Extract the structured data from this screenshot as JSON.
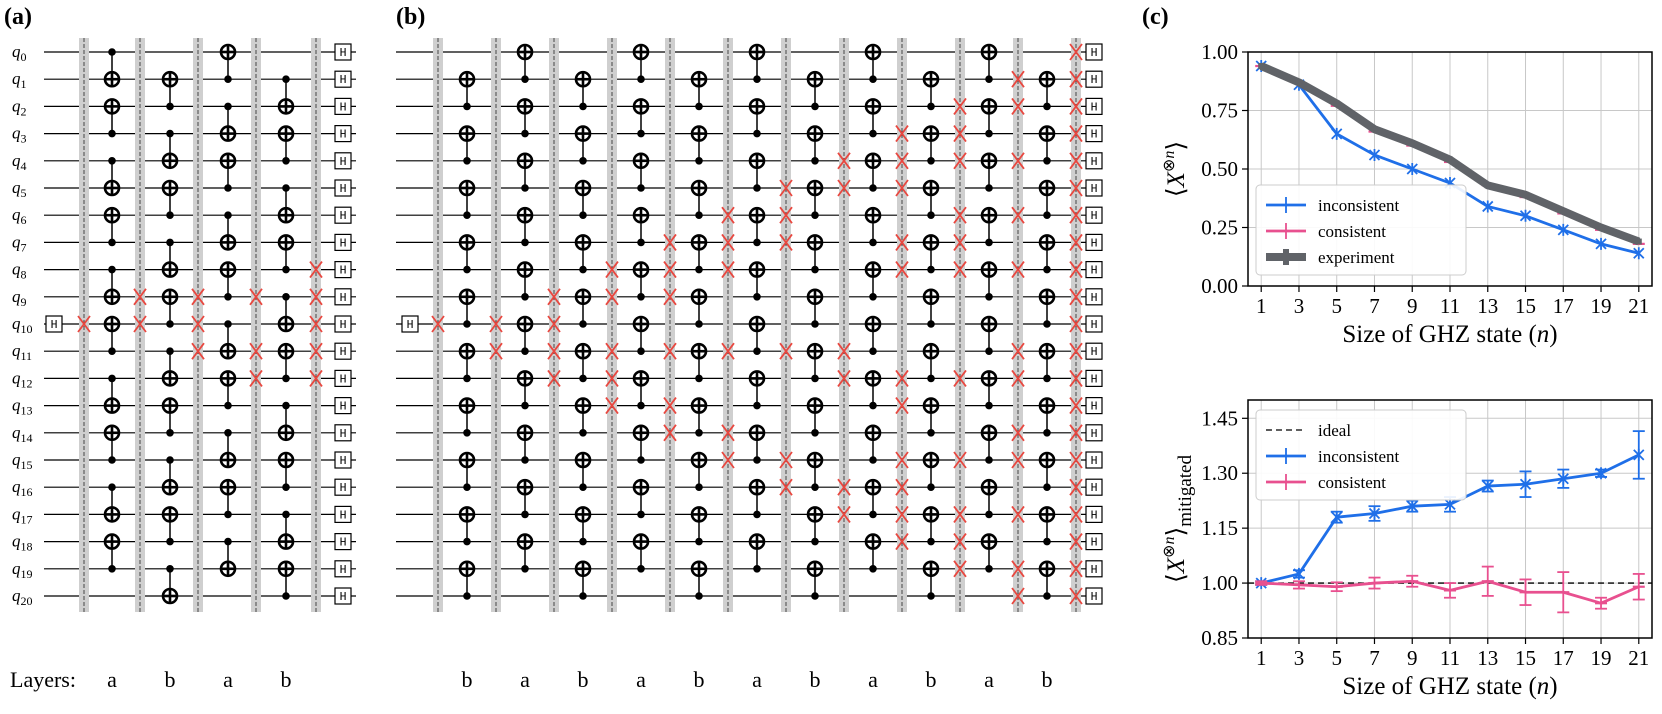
{
  "panels": {
    "a": "(a)",
    "b": "(b)",
    "c": "(c)"
  },
  "hadamard_label": "H",
  "layers_label": "Layers:",
  "circuit_a": {
    "qubits": [
      "q0",
      "q1",
      "q2",
      "q3",
      "q4",
      "q5",
      "q6",
      "q7",
      "q8",
      "q9",
      "q10",
      "q11",
      "q12",
      "q13",
      "q14",
      "q15",
      "q16",
      "q17",
      "q18",
      "q19",
      "q20"
    ],
    "layers": [
      "a",
      "b",
      "a",
      "b"
    ]
  },
  "circuit_b": {
    "layers": [
      "b",
      "a",
      "b",
      "a",
      "b",
      "a",
      "b",
      "a",
      "b",
      "a",
      "b"
    ]
  },
  "colors": {
    "inconsistent": "#1f6fe8",
    "consistent": "#e8508f",
    "experiment": "#606368",
    "swap": "#e8473f",
    "barrier": "#cfcfcf"
  },
  "chart_data": [
    {
      "type": "line",
      "xlabel": "Size of GHZ state (n)",
      "ylabel": "⟨X⊗n⟩",
      "x": [
        1,
        3,
        5,
        7,
        9,
        11,
        13,
        15,
        17,
        19,
        21
      ],
      "xlim": [
        0.3,
        21.7
      ],
      "ylim": [
        0.0,
        1.0
      ],
      "yticks": [
        "0.00",
        "0.25",
        "0.50",
        "0.75",
        "1.00"
      ],
      "grid": true,
      "legend_position": "lower-left",
      "series": [
        {
          "name": "inconsistent",
          "values": [
            0.94,
            0.86,
            0.65,
            0.56,
            0.5,
            0.44,
            0.34,
            0.3,
            0.24,
            0.18,
            0.14
          ]
        },
        {
          "name": "consistent",
          "values": [
            0.94,
            0.87,
            0.77,
            0.66,
            0.6,
            0.53,
            0.43,
            0.38,
            0.31,
            0.24,
            0.18
          ]
        },
        {
          "name": "experiment",
          "values": [
            0.94,
            0.87,
            0.78,
            0.67,
            0.61,
            0.54,
            0.43,
            0.39,
            0.32,
            0.25,
            0.19
          ]
        }
      ]
    },
    {
      "type": "line",
      "xlabel": "Size of GHZ state (n)",
      "ylabel": "⟨X⊗n⟩mitigated",
      "x": [
        1,
        3,
        5,
        7,
        9,
        11,
        13,
        15,
        17,
        19,
        21
      ],
      "xlim": [
        0.3,
        21.7
      ],
      "ylim": [
        0.85,
        1.5
      ],
      "yticks": [
        "0.85",
        "1.00",
        "1.15",
        "1.30",
        "1.45"
      ],
      "grid": true,
      "legend_position": "upper-left",
      "series": [
        {
          "name": "ideal",
          "values": [
            1.0,
            1.0,
            1.0,
            1.0,
            1.0,
            1.0,
            1.0,
            1.0,
            1.0,
            1.0,
            1.0
          ]
        },
        {
          "name": "inconsistent",
          "values": [
            1.0,
            1.025,
            1.18,
            1.19,
            1.21,
            1.215,
            1.265,
            1.27,
            1.285,
            1.3,
            1.35
          ],
          "errors": [
            0.005,
            0.01,
            0.015,
            0.02,
            0.015,
            0.02,
            0.015,
            0.035,
            0.025,
            0.01,
            0.065
          ]
        },
        {
          "name": "consistent",
          "values": [
            1.0,
            0.995,
            0.99,
            1.0,
            1.005,
            0.98,
            1.005,
            0.975,
            0.975,
            0.945,
            0.99
          ],
          "errors": [
            0.005,
            0.01,
            0.012,
            0.015,
            0.015,
            0.02,
            0.04,
            0.035,
            0.055,
            0.015,
            0.035
          ]
        }
      ]
    }
  ]
}
